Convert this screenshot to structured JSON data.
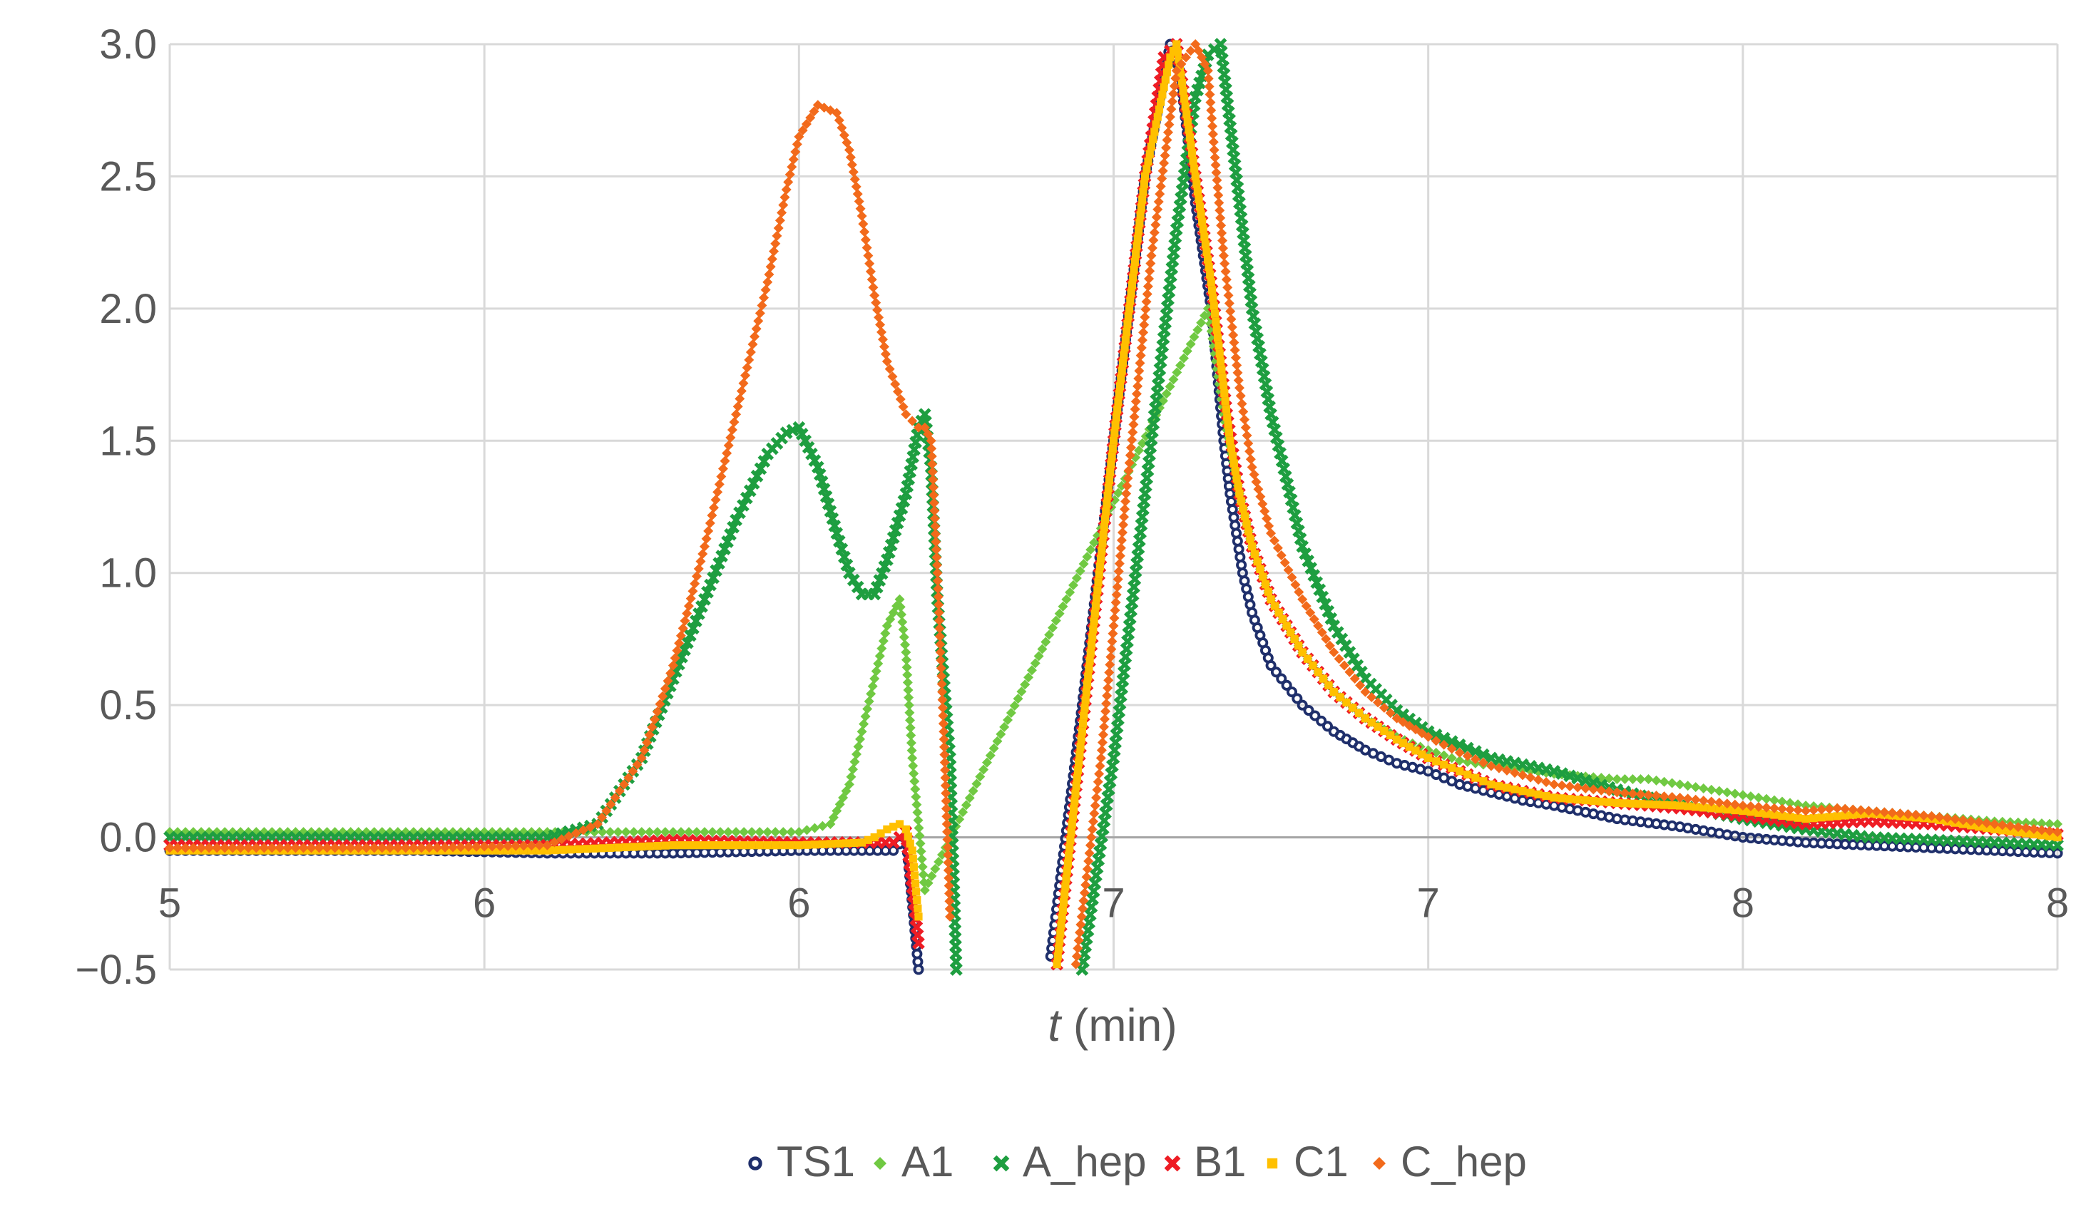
{
  "chart_data": {
    "type": "scatter",
    "title": "",
    "xlabel": "t",
    "xlabel_unit": " (min)",
    "ylabel": "",
    "xlim": [
      5.0,
      8.0
    ],
    "ylim": [
      -0.5,
      3.0
    ],
    "x_tick_values": [
      5.0,
      5.5,
      6.0,
      6.5,
      7.0,
      7.5,
      8.0
    ],
    "x_tick_labels": [
      "5",
      "6",
      "6",
      "7",
      "7",
      "8",
      "8"
    ],
    "y_tick_values": [
      -0.5,
      0.0,
      0.5,
      1.0,
      1.5,
      2.0,
      2.5,
      3.0
    ],
    "y_tick_labels": [
      "−0.5",
      "0.0",
      "0.5",
      "1.0",
      "1.5",
      "2.0",
      "2.5",
      "3.0"
    ],
    "grid": true,
    "legend_position": "bottom",
    "series": [
      {
        "name": "TS1",
        "marker": "circle",
        "color": "#1f2f6b",
        "x": [
          5.0,
          5.2,
          5.4,
          5.6,
          5.8,
          6.0,
          6.1,
          6.15,
          6.17,
          6.19,
          6.4,
          6.45,
          6.5,
          6.55,
          6.59,
          6.605,
          6.63,
          6.655,
          6.665,
          6.675,
          6.685,
          6.695,
          6.705,
          6.72,
          6.75,
          6.8,
          6.85,
          6.9,
          6.95,
          7.0,
          7.05,
          7.1,
          7.15,
          7.2,
          7.3,
          7.4,
          7.5,
          7.6,
          7.7,
          7.8,
          7.9,
          8.0
        ],
        "y": [
          -0.05,
          -0.05,
          -0.05,
          -0.06,
          -0.06,
          -0.05,
          -0.05,
          -0.05,
          0.0,
          -0.5,
          -0.45,
          0.5,
          1.5,
          2.5,
          3.0,
          2.9,
          2.4,
          2.0,
          1.75,
          1.5,
          1.3,
          1.15,
          1.0,
          0.85,
          0.65,
          0.5,
          0.4,
          0.33,
          0.28,
          0.25,
          0.2,
          0.17,
          0.14,
          0.12,
          0.07,
          0.04,
          0.0,
          -0.02,
          -0.03,
          -0.04,
          -0.05,
          -0.06
        ]
      },
      {
        "name": "A1",
        "marker": "diamond",
        "color": "#70c942",
        "x": [
          5.0,
          5.2,
          5.4,
          5.6,
          5.8,
          6.0,
          6.05,
          6.08,
          6.1,
          6.12,
          6.14,
          6.16,
          6.17,
          6.18,
          6.2,
          6.65,
          6.675,
          6.7,
          6.72,
          6.75,
          6.8,
          6.85,
          6.9,
          6.95,
          7.0,
          7.05,
          7.1,
          7.2,
          7.3,
          7.35,
          7.4,
          7.5,
          7.6,
          7.7,
          7.8,
          7.9,
          8.0
        ],
        "y": [
          0.02,
          0.02,
          0.02,
          0.02,
          0.02,
          0.02,
          0.05,
          0.2,
          0.4,
          0.6,
          0.8,
          0.9,
          0.7,
          0.3,
          -0.2,
          2.0,
          1.6,
          1.3,
          1.1,
          0.9,
          0.7,
          0.55,
          0.45,
          0.38,
          0.33,
          0.29,
          0.27,
          0.24,
          0.22,
          0.22,
          0.2,
          0.16,
          0.12,
          0.1,
          0.08,
          0.06,
          0.05
        ]
      },
      {
        "name": "A_hep",
        "marker": "x",
        "color": "#1e9e40",
        "x": [
          5.0,
          5.2,
          5.4,
          5.6,
          5.68,
          5.75,
          5.8,
          5.85,
          5.9,
          5.95,
          5.98,
          6.0,
          6.03,
          6.06,
          6.08,
          6.1,
          6.12,
          6.14,
          6.17,
          6.19,
          6.2,
          6.21,
          6.22,
          6.24,
          6.25,
          6.45,
          6.5,
          6.55,
          6.6,
          6.63,
          6.65,
          6.67,
          6.68,
          6.7,
          6.72,
          6.75,
          6.8,
          6.85,
          6.9,
          6.95,
          7.0,
          7.05,
          7.1,
          7.2,
          7.3,
          7.4,
          7.5,
          7.6,
          7.7,
          7.8,
          7.9,
          8.0
        ],
        "y": [
          0.0,
          0.0,
          0.0,
          0.0,
          0.05,
          0.3,
          0.6,
          0.9,
          1.2,
          1.45,
          1.53,
          1.55,
          1.4,
          1.15,
          1.0,
          0.92,
          0.92,
          1.05,
          1.3,
          1.55,
          1.6,
          1.4,
          0.9,
          0.3,
          -0.5,
          -0.5,
          0.3,
          1.3,
          2.3,
          2.8,
          2.96,
          3.0,
          2.8,
          2.4,
          2.0,
          1.6,
          1.1,
          0.8,
          0.6,
          0.48,
          0.4,
          0.35,
          0.3,
          0.25,
          0.18,
          0.12,
          0.07,
          0.03,
          0.0,
          -0.01,
          -0.02,
          -0.03
        ]
      },
      {
        "name": "B1",
        "marker": "x",
        "color": "#ee1c24",
        "x": [
          5.0,
          5.2,
          5.4,
          5.6,
          5.8,
          6.0,
          6.1,
          6.15,
          6.17,
          6.19,
          6.41,
          6.45,
          6.5,
          6.55,
          6.58,
          6.6,
          6.63,
          6.655,
          6.67,
          6.68,
          6.7,
          6.72,
          6.75,
          6.8,
          6.85,
          6.9,
          6.95,
          7.0,
          7.05,
          7.1,
          7.2,
          7.3,
          7.4,
          7.5,
          7.6,
          7.7,
          7.8,
          7.9,
          8.0
        ],
        "y": [
          -0.03,
          -0.03,
          -0.03,
          -0.03,
          -0.01,
          -0.02,
          -0.02,
          -0.02,
          0.02,
          -0.4,
          -0.48,
          0.4,
          1.5,
          2.5,
          2.95,
          3.0,
          2.5,
          2.1,
          1.8,
          1.6,
          1.3,
          1.1,
          0.9,
          0.7,
          0.55,
          0.45,
          0.37,
          0.3,
          0.25,
          0.2,
          0.15,
          0.13,
          0.11,
          0.08,
          0.05,
          0.06,
          0.05,
          0.03,
          0.01
        ]
      },
      {
        "name": "C1",
        "marker": "square",
        "color": "#ffc000",
        "x": [
          5.0,
          5.2,
          5.4,
          5.6,
          5.8,
          6.0,
          6.1,
          6.12,
          6.14,
          6.16,
          6.17,
          6.18,
          6.19,
          6.41,
          6.45,
          6.5,
          6.55,
          6.59,
          6.6,
          6.63,
          6.655,
          6.67,
          6.685,
          6.7,
          6.72,
          6.75,
          6.8,
          6.85,
          6.9,
          6.95,
          7.0,
          7.05,
          7.1,
          7.2,
          7.3,
          7.4,
          7.5,
          7.6,
          7.7,
          7.8,
          7.9,
          8.0
        ],
        "y": [
          -0.05,
          -0.05,
          -0.05,
          -0.05,
          -0.03,
          -0.03,
          -0.02,
          0.0,
          0.03,
          0.05,
          0.03,
          -0.05,
          -0.3,
          -0.48,
          0.4,
          1.5,
          2.5,
          2.95,
          3.0,
          2.5,
          2.1,
          1.8,
          1.5,
          1.3,
          1.1,
          0.9,
          0.7,
          0.55,
          0.45,
          0.37,
          0.3,
          0.25,
          0.2,
          0.15,
          0.13,
          0.12,
          0.1,
          0.07,
          0.09,
          0.07,
          0.03,
          0.0
        ]
      },
      {
        "name": "C_hep",
        "marker": "diamond",
        "color": "#f26a1b",
        "x": [
          5.0,
          5.2,
          5.4,
          5.6,
          5.68,
          5.75,
          5.8,
          5.85,
          5.9,
          5.95,
          5.98,
          6.0,
          6.03,
          6.06,
          6.08,
          6.1,
          6.12,
          6.14,
          6.17,
          6.19,
          6.2,
          6.21,
          6.22,
          6.23,
          6.24,
          6.44,
          6.48,
          6.52,
          6.56,
          6.6,
          6.63,
          6.65,
          6.66,
          6.675,
          6.69,
          6.7,
          6.72,
          6.75,
          6.8,
          6.85,
          6.9,
          6.95,
          7.0,
          7.05,
          7.1,
          7.2,
          7.3,
          7.4,
          7.5,
          7.6,
          7.65,
          7.7,
          7.8,
          7.9,
          8.0
        ],
        "y": [
          -0.04,
          -0.04,
          -0.04,
          -0.03,
          0.05,
          0.3,
          0.65,
          1.1,
          1.6,
          2.1,
          2.45,
          2.65,
          2.77,
          2.74,
          2.6,
          2.35,
          2.05,
          1.8,
          1.6,
          1.55,
          1.55,
          1.5,
          1.0,
          0.4,
          -0.3,
          -0.48,
          0.3,
          1.3,
          2.2,
          2.9,
          3.0,
          2.9,
          2.6,
          2.2,
          1.9,
          1.7,
          1.4,
          1.15,
          0.9,
          0.7,
          0.55,
          0.45,
          0.38,
          0.32,
          0.27,
          0.2,
          0.17,
          0.15,
          0.12,
          0.1,
          0.11,
          0.1,
          0.08,
          0.05,
          0.02
        ]
      }
    ]
  }
}
